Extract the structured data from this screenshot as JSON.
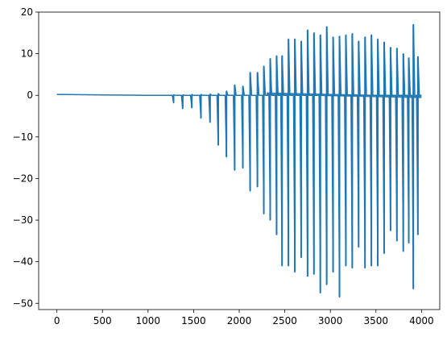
{
  "chart_data": {
    "type": "line",
    "title": "",
    "xlabel": "",
    "ylabel": "",
    "xlim": [
      -200,
      4200
    ],
    "ylim": [
      -51.5,
      20
    ],
    "xticks": [
      0,
      500,
      1000,
      1500,
      2000,
      2500,
      3000,
      3500,
      4000
    ],
    "yticks": [
      20,
      10,
      0,
      -10,
      -20,
      -30,
      -40,
      -50
    ],
    "xtick_labels": [
      "0",
      "500",
      "1000",
      "1500",
      "2000",
      "2500",
      "3000",
      "3500",
      "4000"
    ],
    "ytick_labels": [
      "20",
      "10",
      "0",
      "−10",
      "−20",
      "−30",
      "−40",
      "−50"
    ],
    "grid": false,
    "legend": "none",
    "colors": {
      "series": "#1f77b4",
      "axes": "#000000",
      "background": "#ffffff"
    },
    "series": [
      {
        "spikes": [
          {
            "x": 1280,
            "min": -1.8,
            "max": 0.1
          },
          {
            "x": 1380,
            "min": -3.2,
            "max": 0.1
          },
          {
            "x": 1480,
            "min": -3.0,
            "max": 0.2
          },
          {
            "x": 1580,
            "min": -5.5,
            "max": 0.2
          },
          {
            "x": 1680,
            "min": -6.5,
            "max": 0.3
          },
          {
            "x": 1770,
            "min": -12.0,
            "max": 0.4
          },
          {
            "x": 1860,
            "min": -14.8,
            "max": 1.0
          },
          {
            "x": 1950,
            "min": -18.0,
            "max": 2.5
          },
          {
            "x": 2040,
            "min": -17.5,
            "max": 2.2
          },
          {
            "x": 2120,
            "min": -23.0,
            "max": 5.5
          },
          {
            "x": 2200,
            "min": -22.0,
            "max": 5.5
          },
          {
            "x": 2270,
            "min": -28.5,
            "max": 7.0
          },
          {
            "x": 2340,
            "min": -30.0,
            "max": 8.8
          },
          {
            "x": 2410,
            "min": -33.5,
            "max": 9.5
          },
          {
            "x": 2470,
            "min": -41.0,
            "max": 9.5
          },
          {
            "x": 2540,
            "min": -41.0,
            "max": 13.5
          },
          {
            "x": 2610,
            "min": -42.5,
            "max": 13.5
          },
          {
            "x": 2680,
            "min": -39.0,
            "max": 13.0
          },
          {
            "x": 2750,
            "min": -43.5,
            "max": 15.7
          },
          {
            "x": 2820,
            "min": -43.0,
            "max": 15.0
          },
          {
            "x": 2890,
            "min": -47.5,
            "max": 14.5
          },
          {
            "x": 2960,
            "min": -45.5,
            "max": 16.5
          },
          {
            "x": 3030,
            "min": -42.5,
            "max": 14.0
          },
          {
            "x": 3100,
            "min": -48.5,
            "max": 14.2
          },
          {
            "x": 3170,
            "min": -41.0,
            "max": 14.5
          },
          {
            "x": 3240,
            "min": -41.5,
            "max": 14.8
          },
          {
            "x": 3310,
            "min": -36.5,
            "max": 13.0
          },
          {
            "x": 3380,
            "min": -41.5,
            "max": 14.0
          },
          {
            "x": 3450,
            "min": -41.0,
            "max": 14.5
          },
          {
            "x": 3520,
            "min": -41.0,
            "max": 13.5
          },
          {
            "x": 3590,
            "min": -38.0,
            "max": 12.8
          },
          {
            "x": 3660,
            "min": -32.5,
            "max": 11.5
          },
          {
            "x": 3730,
            "min": -35.0,
            "max": 11.3
          },
          {
            "x": 3800,
            "min": -37.5,
            "max": 10.0
          },
          {
            "x": 3860,
            "min": -35.5,
            "max": 9.0
          },
          {
            "x": 3910,
            "min": -46.5,
            "max": 17.0
          },
          {
            "x": 3960,
            "min": -33.5,
            "max": 9.3
          }
        ],
        "baseline_end": 4000
      }
    ]
  }
}
